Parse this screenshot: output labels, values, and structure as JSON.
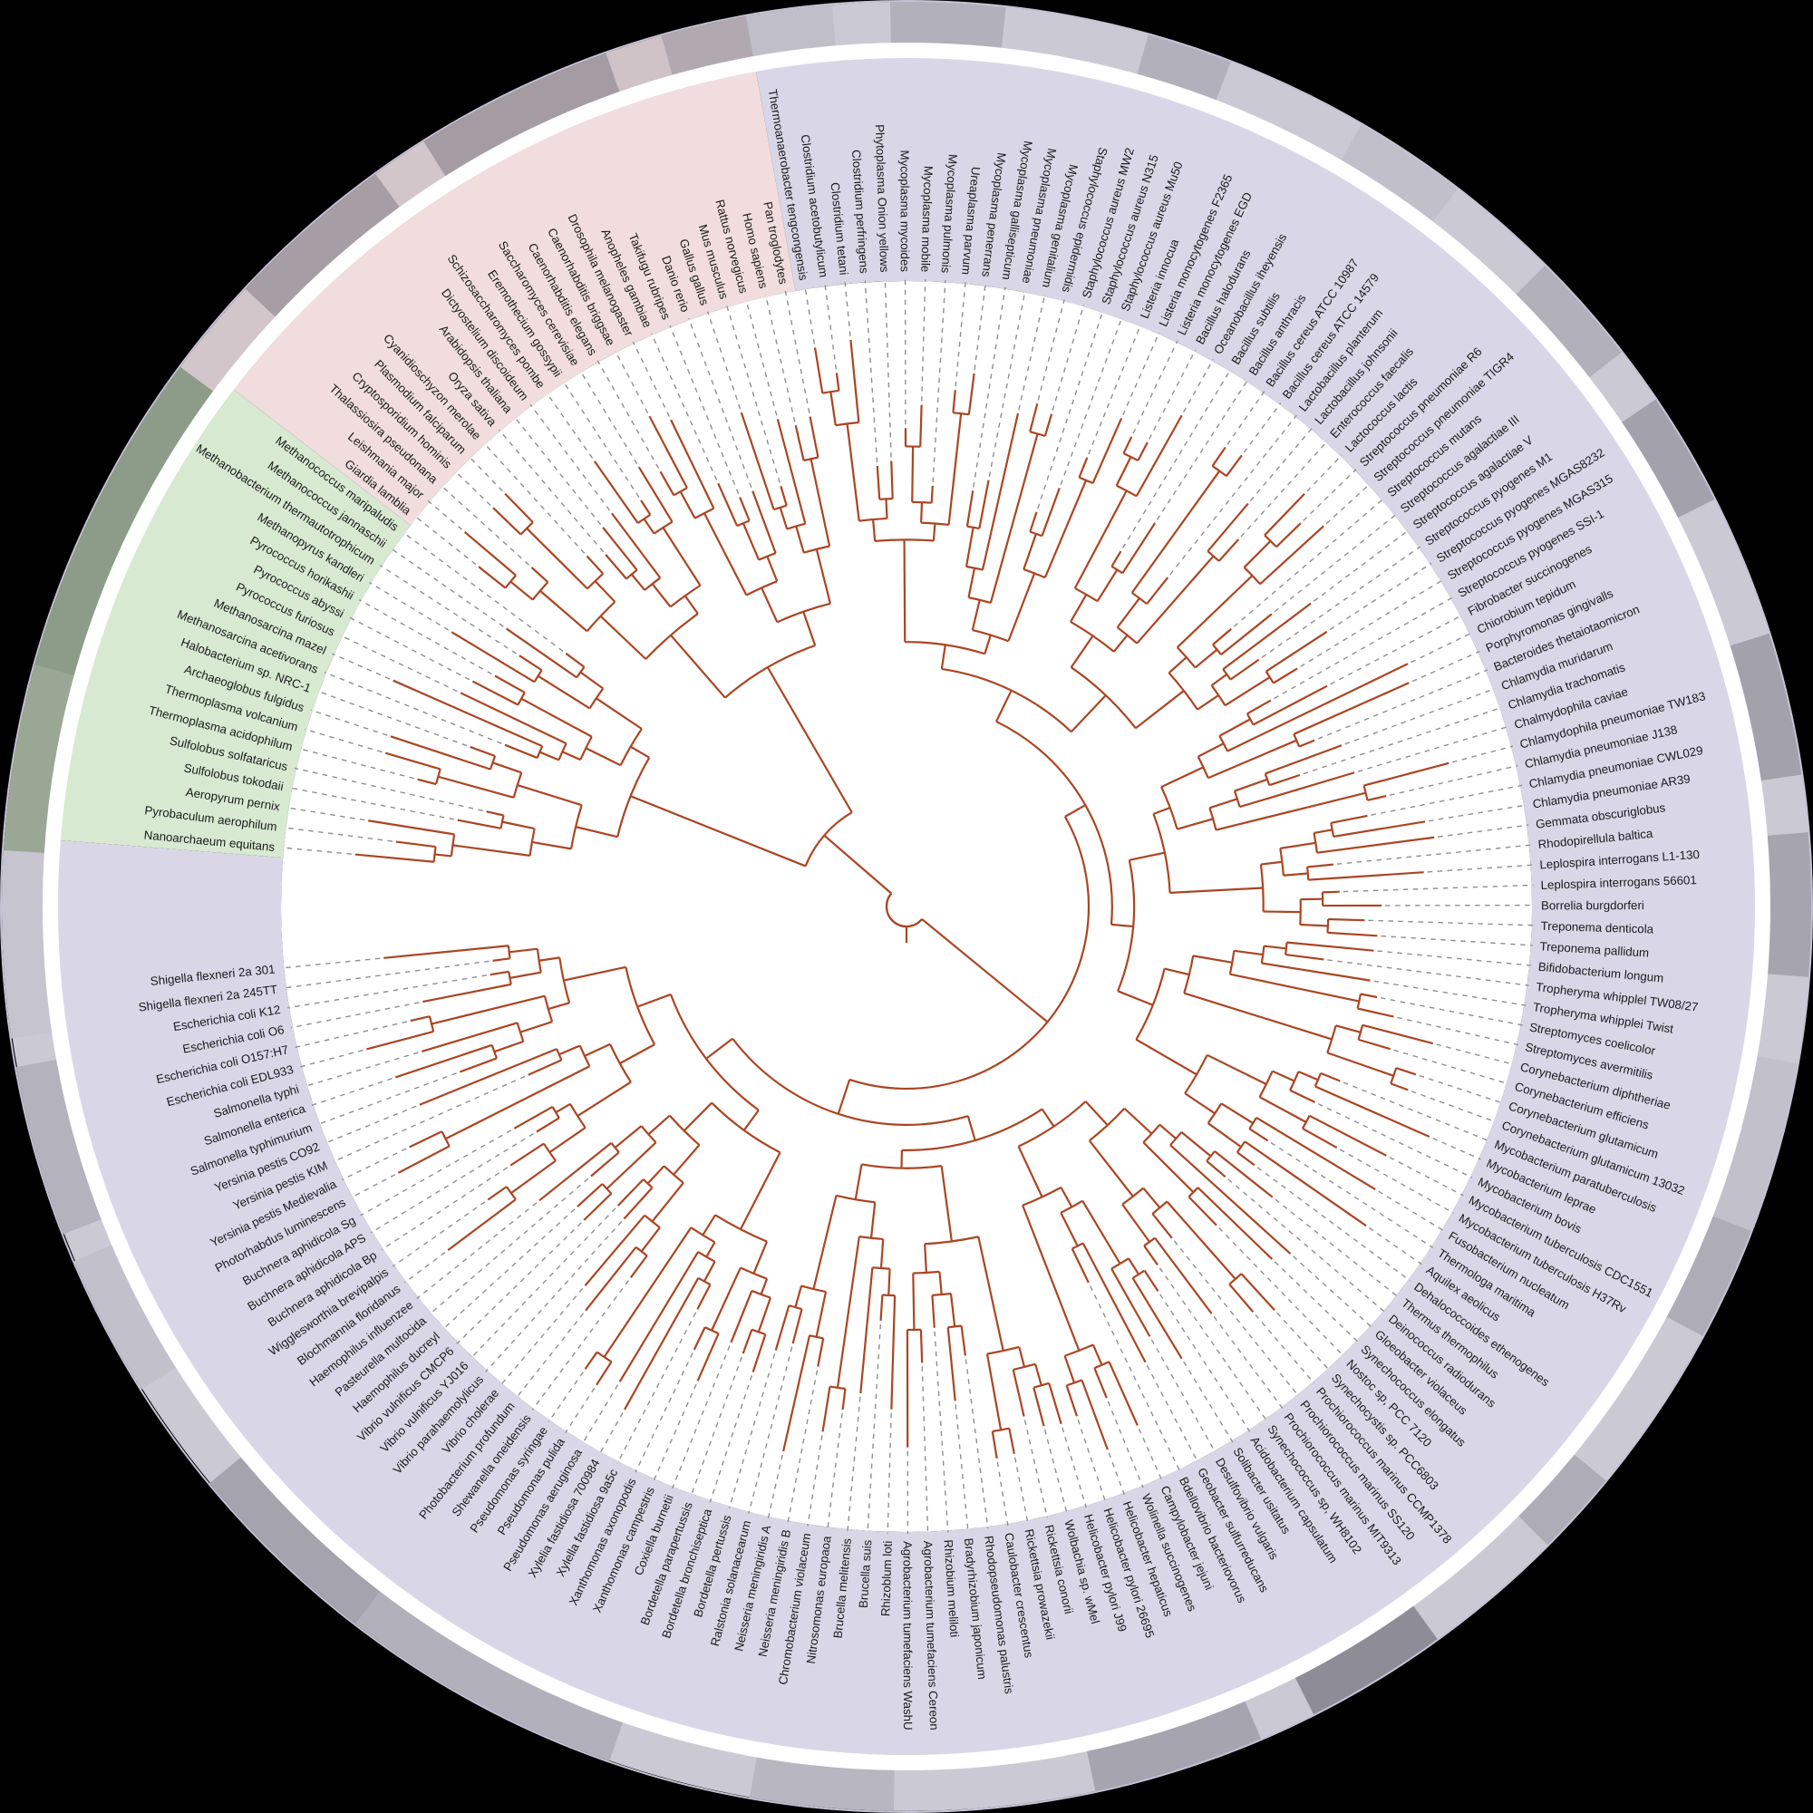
{
  "figure": {
    "kind": "circular-phylogenetic-tree",
    "background": "#000000",
    "inner_disc_color": "#ffffff"
  },
  "tree_style": {
    "branch_color": "#ab4522",
    "leader_color": "#8f8f8f",
    "label_color": "#1a1a1a"
  },
  "ring": {
    "base": "#cbcad4",
    "rim": "#c6c2d6",
    "segments": [
      [
        0,
        3,
        "#c0bec9"
      ],
      [
        5,
        9,
        "#b2b0bb"
      ],
      [
        14,
        17,
        "#b2b0bb"
      ],
      [
        22,
        26,
        "#c1bfca"
      ],
      [
        30,
        34,
        "#b2b0bb"
      ],
      [
        36,
        40,
        "#a3a1ac"
      ],
      [
        45,
        50,
        "#a3a1ac"
      ],
      [
        52,
        57,
        "#a6a4af"
      ],
      [
        60,
        66,
        "#c2c0cb"
      ],
      [
        66,
        70,
        "#aeacb7"
      ],
      [
        76,
        79,
        "#aeacb7"
      ],
      [
        84,
        89,
        "#8e8c97"
      ],
      [
        91,
        97,
        "#a6a4af"
      ],
      [
        104,
        109,
        "#b8b6c1"
      ],
      [
        114,
        124,
        "#b2b0ba"
      ],
      [
        124,
        131,
        "#a5a3ae"
      ],
      [
        135,
        140,
        "#c2c0cb"
      ],
      [
        141,
        147,
        "#b4b2bd"
      ],
      [
        148,
        154.5,
        "#c6c5cf"
      ],
      [
        154.5,
        161,
        "#9aa795"
      ],
      [
        161,
        172.5,
        "#8c9c88"
      ],
      [
        172.5,
        176,
        "#d2c6ca"
      ],
      [
        176,
        182,
        "#a79ea5"
      ],
      [
        182,
        184,
        "#d2c6ca"
      ],
      [
        184,
        191,
        "#a59ca3"
      ],
      [
        191,
        193,
        "#cfc3c8"
      ],
      [
        193,
        196,
        "#b1a9af"
      ]
    ]
  },
  "chart_data": {
    "type": "circular_cladogram",
    "gap_after_index": 149,
    "gap_slots": 5,
    "groups": [
      {
        "id": "b",
        "name": "bacteria-sector",
        "color": "#d9d7e7"
      },
      {
        "id": "a",
        "name": "archaea-sector",
        "color": "#d8e9d1"
      },
      {
        "id": "e",
        "name": "eukaryota-sector",
        "color": "#f1dddd"
      }
    ],
    "leaves": [
      {
        "n": "Thermoanaerobacter tengcongensis",
        "g": "b"
      },
      {
        "n": "Clostridium acetobutylicum",
        "g": "b"
      },
      {
        "n": "Clostridium tetani",
        "g": "b"
      },
      {
        "n": "Clostridium perfringens",
        "g": "b"
      },
      {
        "n": "Phytoplasma Onion yellows",
        "g": "b"
      },
      {
        "n": "Mycoplasma mycoides",
        "g": "b"
      },
      {
        "n": "Mycoplasma mobile",
        "g": "b"
      },
      {
        "n": "Mycoplasma pulmonis",
        "g": "b"
      },
      {
        "n": "Ureaplasma parvum",
        "g": "b"
      },
      {
        "n": "Mycoplasma penerrans",
        "g": "b"
      },
      {
        "n": "Mycoplasma gallisepticum",
        "g": "b"
      },
      {
        "n": "Mycoplasma pneumoniae",
        "g": "b"
      },
      {
        "n": "Mycoplasma genitalium",
        "g": "b"
      },
      {
        "n": "Staphylococcus epidermidis",
        "g": "b"
      },
      {
        "n": "Staphylococcus aureus MW2",
        "g": "b"
      },
      {
        "n": "Staphylococcus aureus N315",
        "g": "b"
      },
      {
        "n": "Staphylococcus aureus Mu50",
        "g": "b"
      },
      {
        "n": "Listeria innocua",
        "g": "b"
      },
      {
        "n": "Listeria monocytogenes F2365",
        "g": "b"
      },
      {
        "n": "Listeria monocytogenes EGD",
        "g": "b"
      },
      {
        "n": "Bacillus halodurans",
        "g": "b"
      },
      {
        "n": "Oceanobacillus iheyensis",
        "g": "b"
      },
      {
        "n": "Bacillus subtilis",
        "g": "b"
      },
      {
        "n": "Bacillus anthracis",
        "g": "b"
      },
      {
        "n": "Bacillus cereus ATCC 10987",
        "g": "b"
      },
      {
        "n": "Bacillus cereus ATCC 14579",
        "g": "b"
      },
      {
        "n": "Lactobacillus planterum",
        "g": "b"
      },
      {
        "n": "Lactobacillus johnsonii",
        "g": "b"
      },
      {
        "n": "Enterococcus faecalis",
        "g": "b"
      },
      {
        "n": "Lactococcus lactis",
        "g": "b"
      },
      {
        "n": "Streptococcus pneumoniae R6",
        "g": "b"
      },
      {
        "n": "Streptococcus pneumoniae TIGR4",
        "g": "b"
      },
      {
        "n": "Streptococcus mutans",
        "g": "b"
      },
      {
        "n": "Streptococcus agalactiae III",
        "g": "b"
      },
      {
        "n": "Streptococcus agalactiae V",
        "g": "b"
      },
      {
        "n": "Streptococcus pyogenes M1",
        "g": "b"
      },
      {
        "n": "Streptococcus pyogenes MGAS8232",
        "g": "b"
      },
      {
        "n": "Streptococcus pyogenes MGAS315",
        "g": "b"
      },
      {
        "n": "Streptococcus pyogenes SSI-1",
        "g": "b"
      },
      {
        "n": "Fibrobacter succinogenes",
        "g": "b"
      },
      {
        "n": "Chiorobium tepidum",
        "g": "b"
      },
      {
        "n": "Porphyromonas gingivalls",
        "g": "b"
      },
      {
        "n": "Bacteroides thetaiotaomicron",
        "g": "b"
      },
      {
        "n": "Chlamydia muridarum",
        "g": "b"
      },
      {
        "n": "Chlamydia trachomatis",
        "g": "b"
      },
      {
        "n": "Chalmydophila caviae",
        "g": "b"
      },
      {
        "n": "Chlamydophila pneumoniae TW183",
        "g": "b"
      },
      {
        "n": "Chlamydia pneumoniae J138",
        "g": "b"
      },
      {
        "n": "Chlamydia pneumoniae CWL029",
        "g": "b"
      },
      {
        "n": "Chlamydia pneumoniae AR39",
        "g": "b"
      },
      {
        "n": "Gemmata obscuriglobus",
        "g": "b"
      },
      {
        "n": "Rhodopirellula baltica",
        "g": "b"
      },
      {
        "n": "Leplospira interrogans L1-130",
        "g": "b"
      },
      {
        "n": "Leplospira interrogans 56601",
        "g": "b"
      },
      {
        "n": "Borrelia burgdorferi",
        "g": "b"
      },
      {
        "n": "Treponema denticola",
        "g": "b"
      },
      {
        "n": "Treponema pallidum",
        "g": "b"
      },
      {
        "n": "Bifidobacterium longum",
        "g": "b"
      },
      {
        "n": "Tropheryma whipplel TW08/27",
        "g": "b"
      },
      {
        "n": "Tropheryma whipplei Twist",
        "g": "b"
      },
      {
        "n": "Streptomyces coelicolor",
        "g": "b"
      },
      {
        "n": "Streptomyces avermitilis",
        "g": "b"
      },
      {
        "n": "Corynebacterium diphtheriae",
        "g": "b"
      },
      {
        "n": "Corynebacterium efficiens",
        "g": "b"
      },
      {
        "n": "Corynebacterium glutamicum",
        "g": "b"
      },
      {
        "n": "Corynebacterium glutamicum 13032",
        "g": "b"
      },
      {
        "n": "Mycobacterium paratuberculosis",
        "g": "b"
      },
      {
        "n": "Mycobacterium leprae",
        "g": "b"
      },
      {
        "n": "Mycobacterium bovis",
        "g": "b"
      },
      {
        "n": "Mycobacterium tuberculosis CDC1551",
        "g": "b"
      },
      {
        "n": "Mycobacterium tuberculosis H37Rv",
        "g": "b"
      },
      {
        "n": "Fusobacterium nucleatum",
        "g": "b"
      },
      {
        "n": "Thermologa maritima",
        "g": "b"
      },
      {
        "n": "Aquilex aeolicus",
        "g": "b"
      },
      {
        "n": "Dehalococcoides ethenogenes",
        "g": "b"
      },
      {
        "n": "Thermus thermophilus",
        "g": "b"
      },
      {
        "n": "Deinococcus radiodurans",
        "g": "b"
      },
      {
        "n": "Gloeobacter violaceus",
        "g": "b"
      },
      {
        "n": "Synechococcus elongatus",
        "g": "b"
      },
      {
        "n": "Nostoc sp, PCC 7120",
        "g": "b"
      },
      {
        "n": "Synechocystis sp. PCC6803",
        "g": "b"
      },
      {
        "n": "Prochiorococcus marinus CCMP1378",
        "g": "b"
      },
      {
        "n": "Prochiorococcus marinus SS120",
        "g": "b"
      },
      {
        "n": "Prochiorococcus marinus MIT9313",
        "g": "b"
      },
      {
        "n": "Synechococcus sp, WH8102",
        "g": "b"
      },
      {
        "n": "Acidobacterium capsulatum",
        "g": "b"
      },
      {
        "n": "Solibacter usitatus",
        "g": "b"
      },
      {
        "n": "Desulfovibrio vulgaris",
        "g": "b"
      },
      {
        "n": "Geobacter sulfurreducans",
        "g": "b"
      },
      {
        "n": "Bdellovibrio bacteriovorus",
        "g": "b"
      },
      {
        "n": "Campylobacter jejuni",
        "g": "b"
      },
      {
        "n": "Wolinella succinogenes",
        "g": "b"
      },
      {
        "n": "Helicobacter hepaticus",
        "g": "b"
      },
      {
        "n": "Helicobacter pylori 26695",
        "g": "b"
      },
      {
        "n": "Helicobacter pylori J99",
        "g": "b"
      },
      {
        "n": "Wolbachia sp. wMel",
        "g": "b"
      },
      {
        "n": "Rickettsia conorii",
        "g": "b"
      },
      {
        "n": "Rickettsia prowazekii",
        "g": "b"
      },
      {
        "n": "Caulobacter crescentus",
        "g": "b"
      },
      {
        "n": "Rhodopseudomonas palustris",
        "g": "b"
      },
      {
        "n": "Bradyrhizobium japonicum",
        "g": "b"
      },
      {
        "n": "Rhizobium meliloti",
        "g": "b"
      },
      {
        "n": "Agrobacterium tumefaciens Cereon",
        "g": "b"
      },
      {
        "n": "Agrobacterium tumefaciens WashU",
        "g": "b"
      },
      {
        "n": "Rhizoblum loti",
        "g": "b"
      },
      {
        "n": "Brucella suis",
        "g": "b"
      },
      {
        "n": "Brucella melitensis",
        "g": "b"
      },
      {
        "n": "Nitrosomonas europaoa",
        "g": "b"
      },
      {
        "n": "Chromobacterium violaceum",
        "g": "b"
      },
      {
        "n": "Neisseria meningiridis B",
        "g": "b"
      },
      {
        "n": "Neisseria meningiridis A",
        "g": "b"
      },
      {
        "n": "Ralstonia solanacearum",
        "g": "b"
      },
      {
        "n": "Bordetella pertussis",
        "g": "b"
      },
      {
        "n": "Bordetella bronchiseptica",
        "g": "b"
      },
      {
        "n": "Bordetella parapertussis",
        "g": "b"
      },
      {
        "n": "Coxiella burnetii",
        "g": "b"
      },
      {
        "n": "Xanthomonas campestris",
        "g": "b"
      },
      {
        "n": "Xanthomonas axonopodis",
        "g": "b"
      },
      {
        "n": "Xylella fastidiosa 9a5c",
        "g": "b"
      },
      {
        "n": "Xylelia fastidiosa 700984",
        "g": "b"
      },
      {
        "n": "Pseudomonas aeruginosa",
        "g": "b"
      },
      {
        "n": "Pseudomonas pulida",
        "g": "b"
      },
      {
        "n": "Pseudomonas syringae",
        "g": "b"
      },
      {
        "n": "Shewanella oneidensis",
        "g": "b"
      },
      {
        "n": "Photobacterium profundum",
        "g": "b"
      },
      {
        "n": "Vibrio cholerae",
        "g": "b"
      },
      {
        "n": "Vibrio parahaemolylicus",
        "g": "b"
      },
      {
        "n": "Vibrio vulnificus YJ016",
        "g": "b"
      },
      {
        "n": "Vibrio vulnificus CMCP6",
        "g": "b"
      },
      {
        "n": "Haemophilus ducreyl",
        "g": "b"
      },
      {
        "n": "Pasteurella multocida",
        "g": "b"
      },
      {
        "n": "Haemophilus influenzee",
        "g": "b"
      },
      {
        "n": "Blochmannia floridanus",
        "g": "b"
      },
      {
        "n": "Wigglesworthia brevipalpis",
        "g": "b"
      },
      {
        "n": "Buchnera aphidicola Bp",
        "g": "b"
      },
      {
        "n": "Buchnera aphidicola APS",
        "g": "b"
      },
      {
        "n": "Buchnera aphidicola Sg",
        "g": "b"
      },
      {
        "n": "Photorhabdus luminescens",
        "g": "b"
      },
      {
        "n": "Yersinia pestis Medievalia",
        "g": "b"
      },
      {
        "n": "Yersinia pestis KIM",
        "g": "b"
      },
      {
        "n": "Yersinia pestis CO92",
        "g": "b"
      },
      {
        "n": "Salmonella typhimurium",
        "g": "b"
      },
      {
        "n": "Salmonella enterica",
        "g": "b"
      },
      {
        "n": "Salmonella typhi",
        "g": "b"
      },
      {
        "n": "Escherichia coli EDL933",
        "g": "b"
      },
      {
        "n": "Escherichia coli O157:H7",
        "g": "b"
      },
      {
        "n": "Escherichia coli O6",
        "g": "b"
      },
      {
        "n": "Escherichia coli K12",
        "g": "b"
      },
      {
        "n": "Shigella flexneri 2a 245TT",
        "g": "b"
      },
      {
        "n": "Shigella flexneri 2a 301",
        "g": "b"
      },
      {
        "n": "Nanoarchaeum equitans",
        "g": "a"
      },
      {
        "n": "Pyrobaculum aerophilum",
        "g": "a"
      },
      {
        "n": "Aeropyrum pernix",
        "g": "a"
      },
      {
        "n": "Sulfolobus tokodaii",
        "g": "a"
      },
      {
        "n": "Sulfolobus solfataricus",
        "g": "a"
      },
      {
        "n": "Thermoplasma acidophilum",
        "g": "a"
      },
      {
        "n": "Thermoplasma volcanium",
        "g": "a"
      },
      {
        "n": "Archaeoglobus fulgidus",
        "g": "a"
      },
      {
        "n": "Halobacterium sp. NRC-1",
        "g": "a"
      },
      {
        "n": "Methanosarcina acetivorans",
        "g": "a"
      },
      {
        "n": "Methanosarcina mazel",
        "g": "a"
      },
      {
        "n": "Pyrococcus furiosus",
        "g": "a"
      },
      {
        "n": "Pyrococcus abyssi",
        "g": "a"
      },
      {
        "n": "Pyrococcus horikashii",
        "g": "a"
      },
      {
        "n": "Methanopyrus kandleri",
        "g": "a"
      },
      {
        "n": "Methanobacterium thermautotrophicum",
        "g": "a"
      },
      {
        "n": "Methanococcus jannaschii",
        "g": "a"
      },
      {
        "n": "Methanococcus maripaludis",
        "g": "a"
      },
      {
        "n": "Giardia lamblia",
        "g": "e"
      },
      {
        "n": "Leishmania major",
        "g": "e"
      },
      {
        "n": "Thalassiosira pseudonana",
        "g": "e"
      },
      {
        "n": "Cryptosporidium hominis",
        "g": "e"
      },
      {
        "n": "Plasmodium falciparum",
        "g": "e"
      },
      {
        "n": "Cyanidioschyzon merolae",
        "g": "e"
      },
      {
        "n": "Oryza sativa",
        "g": "e"
      },
      {
        "n": "Arabidopsis thaliana",
        "g": "e"
      },
      {
        "n": "Dictyostelium discoideum",
        "g": "e"
      },
      {
        "n": "Schizosaccharomyces pombe",
        "g": "e"
      },
      {
        "n": "Eremothecium gossypii",
        "g": "e"
      },
      {
        "n": "Saccharomyces cerevisiae",
        "g": "e"
      },
      {
        "n": "Caenorhabditis elegans",
        "g": "e"
      },
      {
        "n": "Caenorhabditis briggsae",
        "g": "e"
      },
      {
        "n": "Drosophila melanogaster",
        "g": "e"
      },
      {
        "n": "Anopheles gambiae",
        "g": "e"
      },
      {
        "n": "Takifugu rubripes",
        "g": "e"
      },
      {
        "n": "Danio rerio",
        "g": "e"
      },
      {
        "n": "Gallus gallus",
        "g": "e"
      },
      {
        "n": "Mus musculus",
        "g": "e"
      },
      {
        "n": "Rattus norvegicus",
        "g": "e"
      },
      {
        "n": "Homo sapiens",
        "g": "e"
      },
      {
        "n": "Pan troglodytes",
        "g": "e"
      }
    ]
  }
}
